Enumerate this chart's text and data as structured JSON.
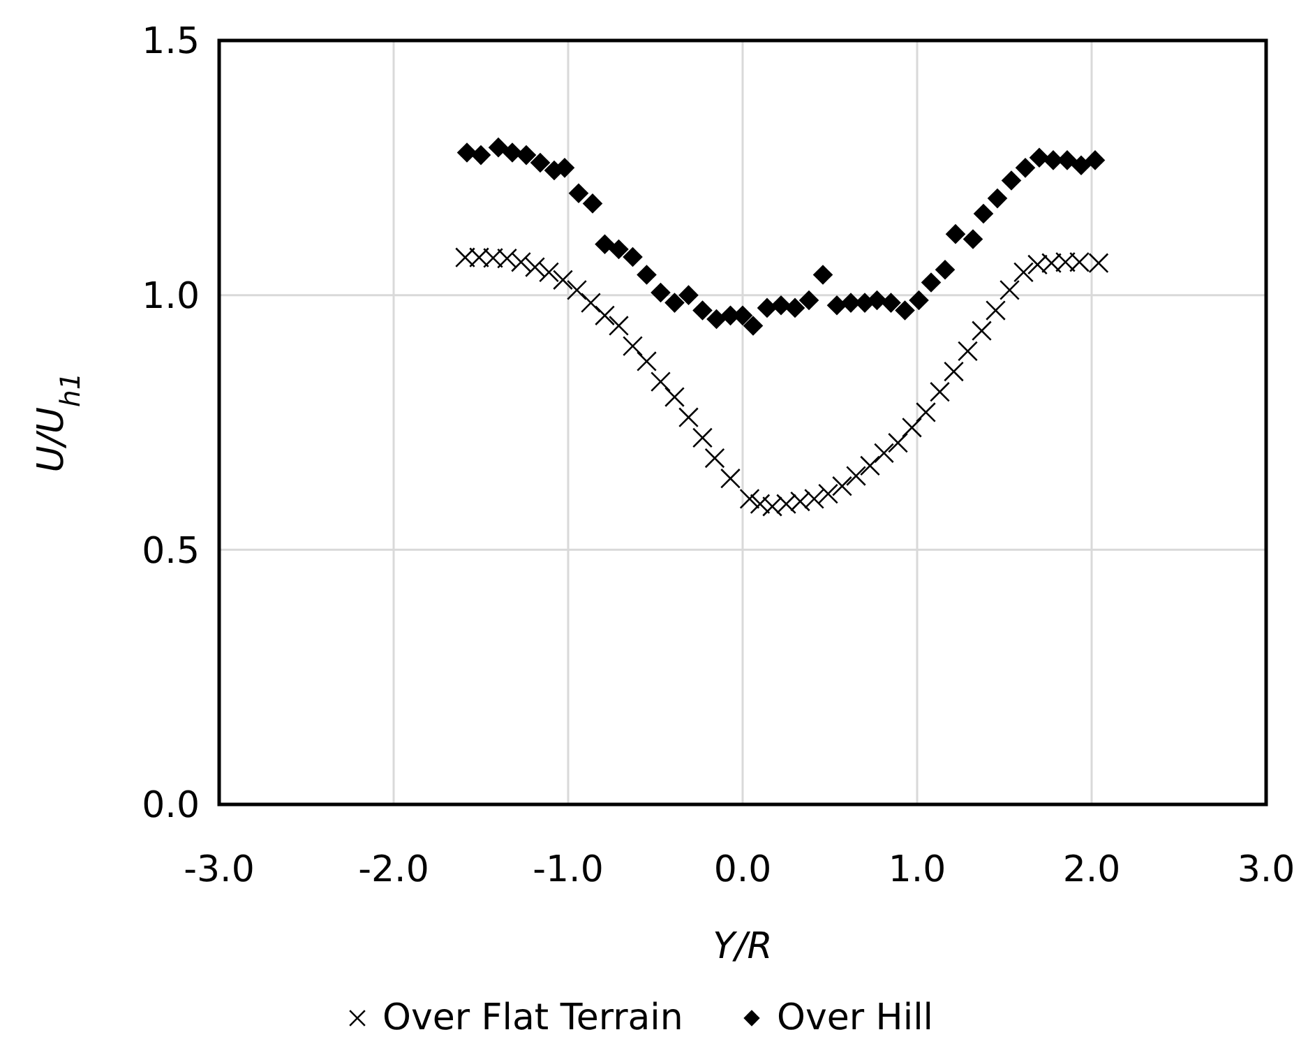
{
  "chart_data": {
    "type": "scatter",
    "xlabel": "Y/R",
    "ylabel": "U/U$_{h1}$",
    "xlim": [
      -3,
      3
    ],
    "ylim": [
      0,
      1.5
    ],
    "xticks": [
      {
        "value": -3,
        "label": "-3.0"
      },
      {
        "value": -2,
        "label": "-2.0"
      },
      {
        "value": -1,
        "label": "-1.0"
      },
      {
        "value": 0,
        "label": "0.0"
      },
      {
        "value": 1,
        "label": "1.0"
      },
      {
        "value": 2,
        "label": "2.0"
      },
      {
        "value": 3,
        "label": "3.0"
      }
    ],
    "yticks": [
      {
        "value": 0,
        "label": "0.0"
      },
      {
        "value": 0.5,
        "label": "0.5"
      },
      {
        "value": 1,
        "label": "1.0"
      },
      {
        "value": 1.5,
        "label": "1.5"
      }
    ],
    "grid": true,
    "legend": "bottom",
    "series": [
      {
        "name": "Over Flat Terrain",
        "color": "#000000",
        "marker": "cross",
        "x": [
          -1.59,
          -1.51,
          -1.43,
          -1.35,
          -1.27,
          -1.19,
          -1.11,
          -1.03,
          -0.95,
          -0.87,
          -0.79,
          -0.71,
          -0.63,
          -0.55,
          -0.47,
          -0.39,
          -0.31,
          -0.23,
          -0.16,
          -0.07,
          0.04,
          0.1,
          0.17,
          0.25,
          0.33,
          0.41,
          0.49,
          0.57,
          0.65,
          0.73,
          0.81,
          0.89,
          0.97,
          1.05,
          1.13,
          1.21,
          1.29,
          1.37,
          1.45,
          1.53,
          1.61,
          1.69,
          1.77,
          1.85,
          1.93,
          2.04
        ],
        "values": [
          1.074,
          1.074,
          1.073,
          1.072,
          1.065,
          1.055,
          1.045,
          1.03,
          1.01,
          0.985,
          0.96,
          0.94,
          0.9,
          0.87,
          0.83,
          0.8,
          0.76,
          0.72,
          0.68,
          0.64,
          0.6,
          0.59,
          0.585,
          0.59,
          0.595,
          0.6,
          0.61,
          0.625,
          0.645,
          0.665,
          0.69,
          0.71,
          0.74,
          0.77,
          0.81,
          0.85,
          0.89,
          0.93,
          0.97,
          1.01,
          1.045,
          1.06,
          1.063,
          1.065,
          1.065,
          1.063
        ]
      },
      {
        "name": "Over Hill",
        "color": "#000000",
        "marker": "diamond",
        "x": [
          -1.58,
          -1.5,
          -1.4,
          -1.32,
          -1.24,
          -1.16,
          -1.08,
          -1.02,
          -0.94,
          -0.86,
          -0.79,
          -0.71,
          -0.63,
          -0.55,
          -0.47,
          -0.39,
          -0.31,
          -0.23,
          -0.15,
          -0.07,
          0.0,
          0.06,
          0.14,
          0.22,
          0.3,
          0.38,
          0.46,
          0.54,
          0.62,
          0.7,
          0.77,
          0.85,
          0.93,
          1.01,
          1.08,
          1.16,
          1.22,
          1.32,
          1.38,
          1.46,
          1.54,
          1.62,
          1.7,
          1.78,
          1.86,
          1.94,
          2.02
        ],
        "values": [
          1.28,
          1.275,
          1.29,
          1.28,
          1.275,
          1.26,
          1.245,
          1.25,
          1.2,
          1.18,
          1.1,
          1.09,
          1.075,
          1.04,
          1.005,
          0.985,
          1.0,
          0.97,
          0.953,
          0.96,
          0.96,
          0.94,
          0.975,
          0.98,
          0.975,
          0.99,
          1.04,
          0.98,
          0.985,
          0.985,
          0.99,
          0.985,
          0.97,
          0.99,
          1.025,
          1.05,
          1.12,
          1.11,
          1.16,
          1.19,
          1.225,
          1.25,
          1.27,
          1.265,
          1.265,
          1.255,
          1.265
        ]
      }
    ]
  }
}
